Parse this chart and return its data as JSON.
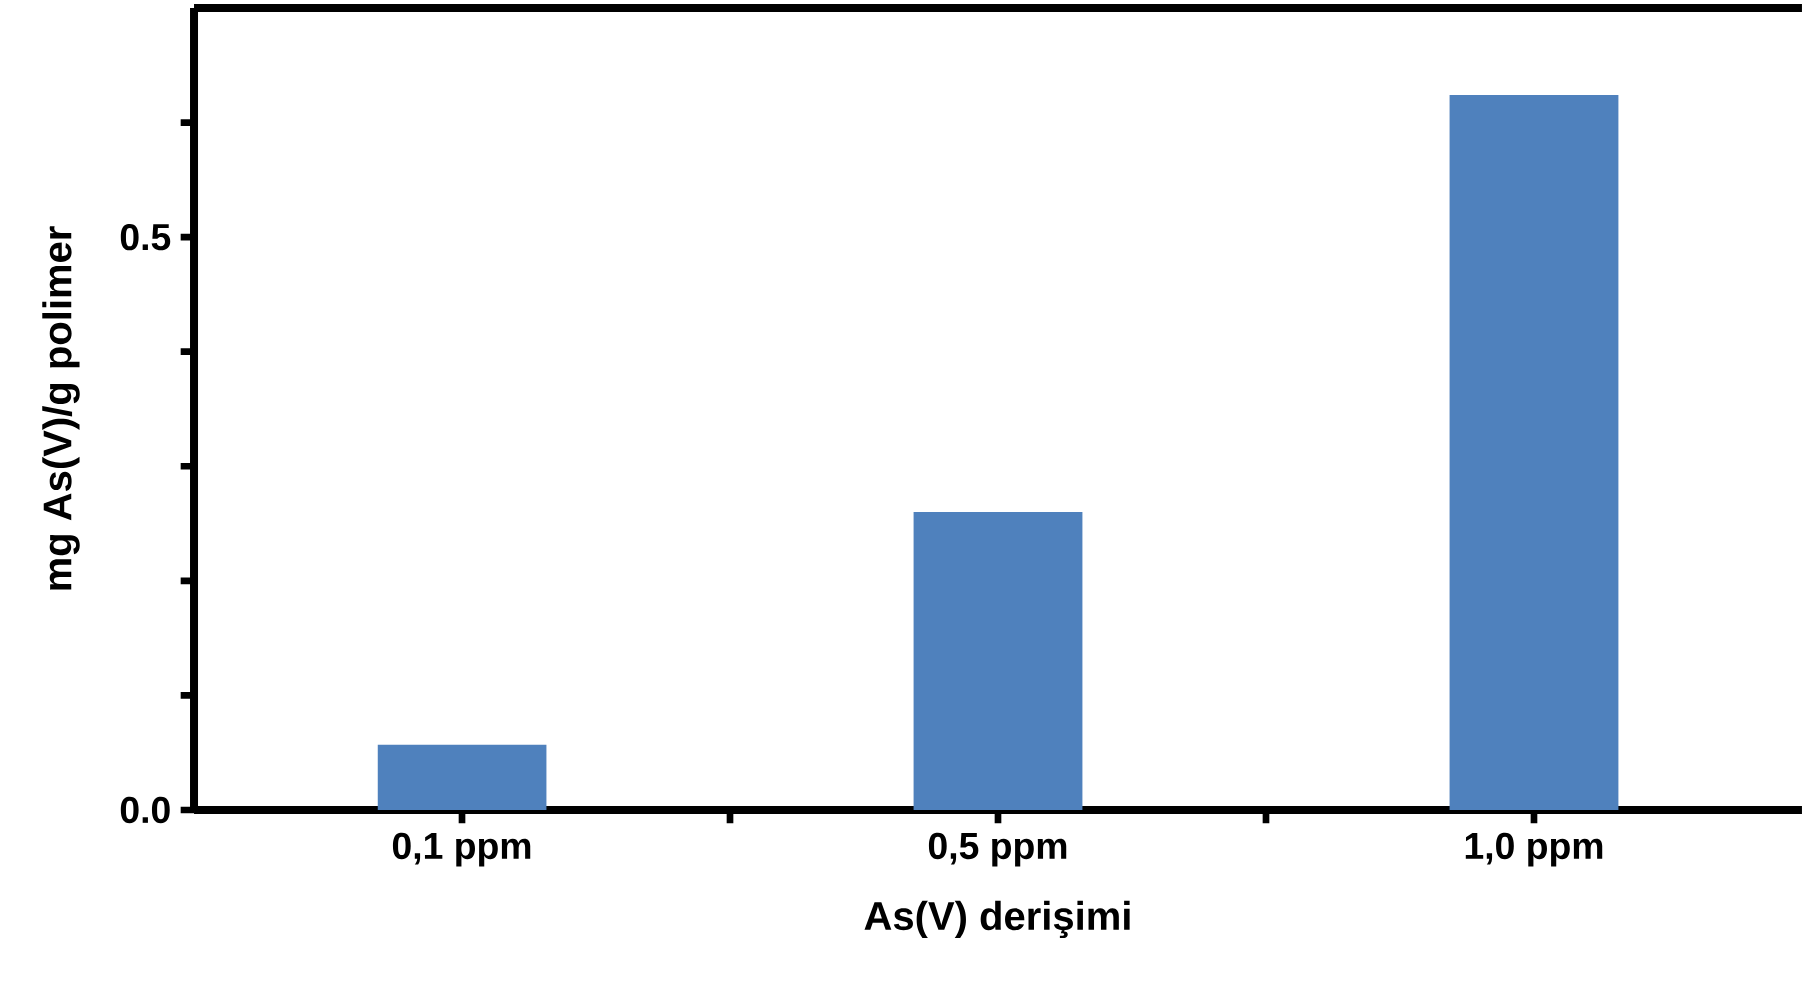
{
  "chart_data": {
    "type": "bar",
    "xlabel": "As(V) derişimi",
    "ylabel": "mg As(V)/g polimer",
    "categories": [
      "0,1 ppm",
      "0,5 ppm",
      "1,0 ppm"
    ],
    "values": [
      0.057,
      0.26,
      0.624
    ],
    "color": "#4f81bd",
    "ylim": [
      0,
      0.7
    ],
    "yticks": [
      {
        "value": 0,
        "label": "0.0"
      },
      {
        "value": 0.1,
        "label": null
      },
      {
        "value": 0.2,
        "label": null
      },
      {
        "value": 0.3,
        "label": null
      },
      {
        "value": 0.4,
        "label": null
      },
      {
        "value": 0.5,
        "label": "0.5"
      },
      {
        "value": 0.6,
        "label": null
      }
    ],
    "grid": false
  }
}
